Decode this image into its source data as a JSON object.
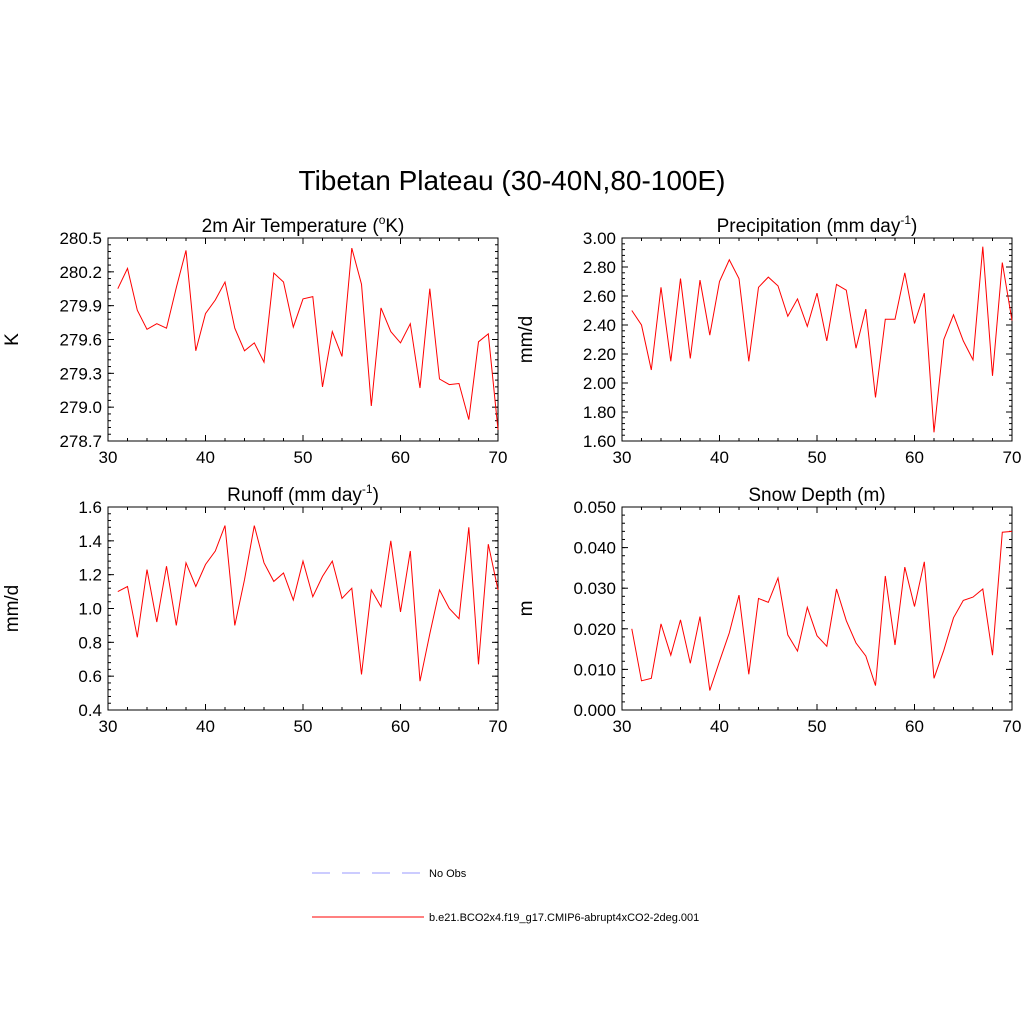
{
  "figure": {
    "title": "Tibetan Plateau (30-40N,80-100E)"
  },
  "colors": {
    "series": "#ff0000",
    "obs": "#9999ff"
  },
  "chart_data": [
    {
      "type": "line",
      "title": "2m Air Temperature (",
      "title_sup": "o",
      "title_end": "K)",
      "ylabel": "K",
      "xlabel": "",
      "xlim": [
        30,
        70
      ],
      "ylim": [
        278.7,
        280.5
      ],
      "xticks": [
        30,
        40,
        50,
        60,
        70
      ],
      "xtick_labels": [
        "30",
        "40",
        "50",
        "60",
        "70"
      ],
      "yticks": [
        278.7,
        279.0,
        279.3,
        279.6,
        279.9,
        280.2,
        280.5
      ],
      "ytick_labels": [
        "278.7",
        "279.0",
        "279.3",
        "279.6",
        "279.9",
        "280.2",
        "280.5"
      ],
      "x": [
        31,
        32,
        33,
        34,
        35,
        36,
        37,
        38,
        39,
        40,
        41,
        42,
        43,
        44,
        45,
        46,
        47,
        48,
        49,
        50,
        51,
        52,
        53,
        54,
        55,
        56,
        57,
        58,
        59,
        60,
        61,
        62,
        63,
        64,
        65,
        66,
        67,
        68,
        69,
        70
      ],
      "y": [
        280.05,
        280.23,
        279.86,
        279.69,
        279.74,
        279.7,
        280.06,
        280.39,
        279.5,
        279.83,
        279.95,
        280.11,
        279.7,
        279.5,
        279.57,
        279.4,
        280.19,
        280.11,
        279.71,
        279.96,
        279.98,
        279.18,
        279.67,
        279.45,
        280.41,
        280.09,
        279.01,
        279.88,
        279.67,
        279.57,
        279.74,
        279.17,
        280.05,
        279.25,
        279.2,
        279.21,
        278.89,
        279.58,
        279.65,
        278.8
      ]
    },
    {
      "type": "line",
      "title": "Precipitation (mm day",
      "title_sup": "-1",
      "title_end": ")",
      "ylabel": "mm/d",
      "xlabel": "",
      "xlim": [
        30,
        70
      ],
      "ylim": [
        1.6,
        3.0
      ],
      "xticks": [
        30,
        40,
        50,
        60,
        70
      ],
      "xtick_labels": [
        "30",
        "40",
        "50",
        "60",
        "70"
      ],
      "yticks": [
        1.6,
        1.8,
        2.0,
        2.2,
        2.4,
        2.6,
        2.8,
        3.0
      ],
      "ytick_labels": [
        "1.60",
        "1.80",
        "2.00",
        "2.20",
        "2.40",
        "2.60",
        "2.80",
        "3.00"
      ],
      "x": [
        31,
        32,
        33,
        34,
        35,
        36,
        37,
        38,
        39,
        40,
        41,
        42,
        43,
        44,
        45,
        46,
        47,
        48,
        49,
        50,
        51,
        52,
        53,
        54,
        55,
        56,
        57,
        58,
        59,
        60,
        61,
        62,
        63,
        64,
        65,
        66,
        67,
        68,
        69,
        70
      ],
      "y": [
        2.5,
        2.4,
        2.09,
        2.66,
        2.15,
        2.72,
        2.17,
        2.71,
        2.33,
        2.7,
        2.85,
        2.72,
        2.15,
        2.66,
        2.73,
        2.67,
        2.46,
        2.58,
        2.39,
        2.62,
        2.29,
        2.68,
        2.64,
        2.24,
        2.51,
        1.9,
        2.44,
        2.44,
        2.76,
        2.41,
        2.62,
        1.66,
        2.3,
        2.47,
        2.29,
        2.16,
        2.94,
        2.05,
        2.83,
        2.43
      ]
    },
    {
      "type": "line",
      "title": "Runoff (mm day",
      "title_sup": "-1",
      "title_end": ")",
      "ylabel": "mm/d",
      "xlabel": "",
      "xlim": [
        30,
        70
      ],
      "ylim": [
        0.4,
        1.6
      ],
      "xticks": [
        30,
        40,
        50,
        60,
        70
      ],
      "xtick_labels": [
        "30",
        "40",
        "50",
        "60",
        "70"
      ],
      "yticks": [
        0.4,
        0.6,
        0.8,
        1.0,
        1.2,
        1.4,
        1.6
      ],
      "ytick_labels": [
        "0.4",
        "0.6",
        "0.8",
        "1.0",
        "1.2",
        "1.4",
        "1.6"
      ],
      "x": [
        31,
        32,
        33,
        34,
        35,
        36,
        37,
        38,
        39,
        40,
        41,
        42,
        43,
        44,
        45,
        46,
        47,
        48,
        49,
        50,
        51,
        52,
        53,
        54,
        55,
        56,
        57,
        58,
        59,
        60,
        61,
        62,
        63,
        64,
        65,
        66,
        67,
        68,
        69,
        70
      ],
      "y": [
        1.1,
        1.13,
        0.83,
        1.23,
        0.92,
        1.25,
        0.9,
        1.27,
        1.13,
        1.26,
        1.34,
        1.49,
        0.9,
        1.17,
        1.49,
        1.27,
        1.16,
        1.21,
        1.05,
        1.28,
        1.07,
        1.19,
        1.28,
        1.06,
        1.12,
        0.61,
        1.11,
        1.01,
        1.4,
        0.98,
        1.34,
        0.57,
        0.85,
        1.11,
        1.0,
        0.94,
        1.48,
        0.67,
        1.38,
        1.11
      ]
    },
    {
      "type": "line",
      "title": "Snow Depth (m)",
      "title_sup": "",
      "title_end": "",
      "ylabel": "m",
      "xlabel": "",
      "xlim": [
        30,
        70
      ],
      "ylim": [
        0.0,
        0.05
      ],
      "xticks": [
        30,
        40,
        50,
        60,
        70
      ],
      "xtick_labels": [
        "30",
        "40",
        "50",
        "60",
        "70"
      ],
      "yticks": [
        0.0,
        0.01,
        0.02,
        0.03,
        0.04,
        0.05
      ],
      "ytick_labels": [
        "0.000",
        "0.010",
        "0.020",
        "0.030",
        "0.040",
        "0.050"
      ],
      "x": [
        31,
        32,
        33,
        34,
        35,
        36,
        37,
        38,
        39,
        40,
        41,
        42,
        43,
        44,
        45,
        46,
        47,
        48,
        49,
        50,
        51,
        52,
        53,
        54,
        55,
        56,
        57,
        58,
        59,
        60,
        61,
        62,
        63,
        64,
        65,
        66,
        67,
        68,
        69,
        70
      ],
      "y": [
        0.02,
        0.0072,
        0.0078,
        0.0212,
        0.0135,
        0.0222,
        0.0115,
        0.023,
        0.0048,
        0.012,
        0.019,
        0.0283,
        0.0088,
        0.0275,
        0.0265,
        0.0325,
        0.0185,
        0.0145,
        0.0253,
        0.0183,
        0.0157,
        0.0298,
        0.022,
        0.0165,
        0.0133,
        0.006,
        0.033,
        0.016,
        0.0352,
        0.0255,
        0.0365,
        0.0078,
        0.0147,
        0.0227,
        0.027,
        0.0278,
        0.0298,
        0.0135,
        0.0438,
        0.044
      ]
    }
  ],
  "legend": {
    "entries": [
      {
        "label": "No Obs",
        "style": "dashed"
      },
      {
        "label": "b.e21.BCO2x4.f19_g17.CMIP6-abrupt4xCO2-2deg.001",
        "style": "solid"
      }
    ]
  }
}
